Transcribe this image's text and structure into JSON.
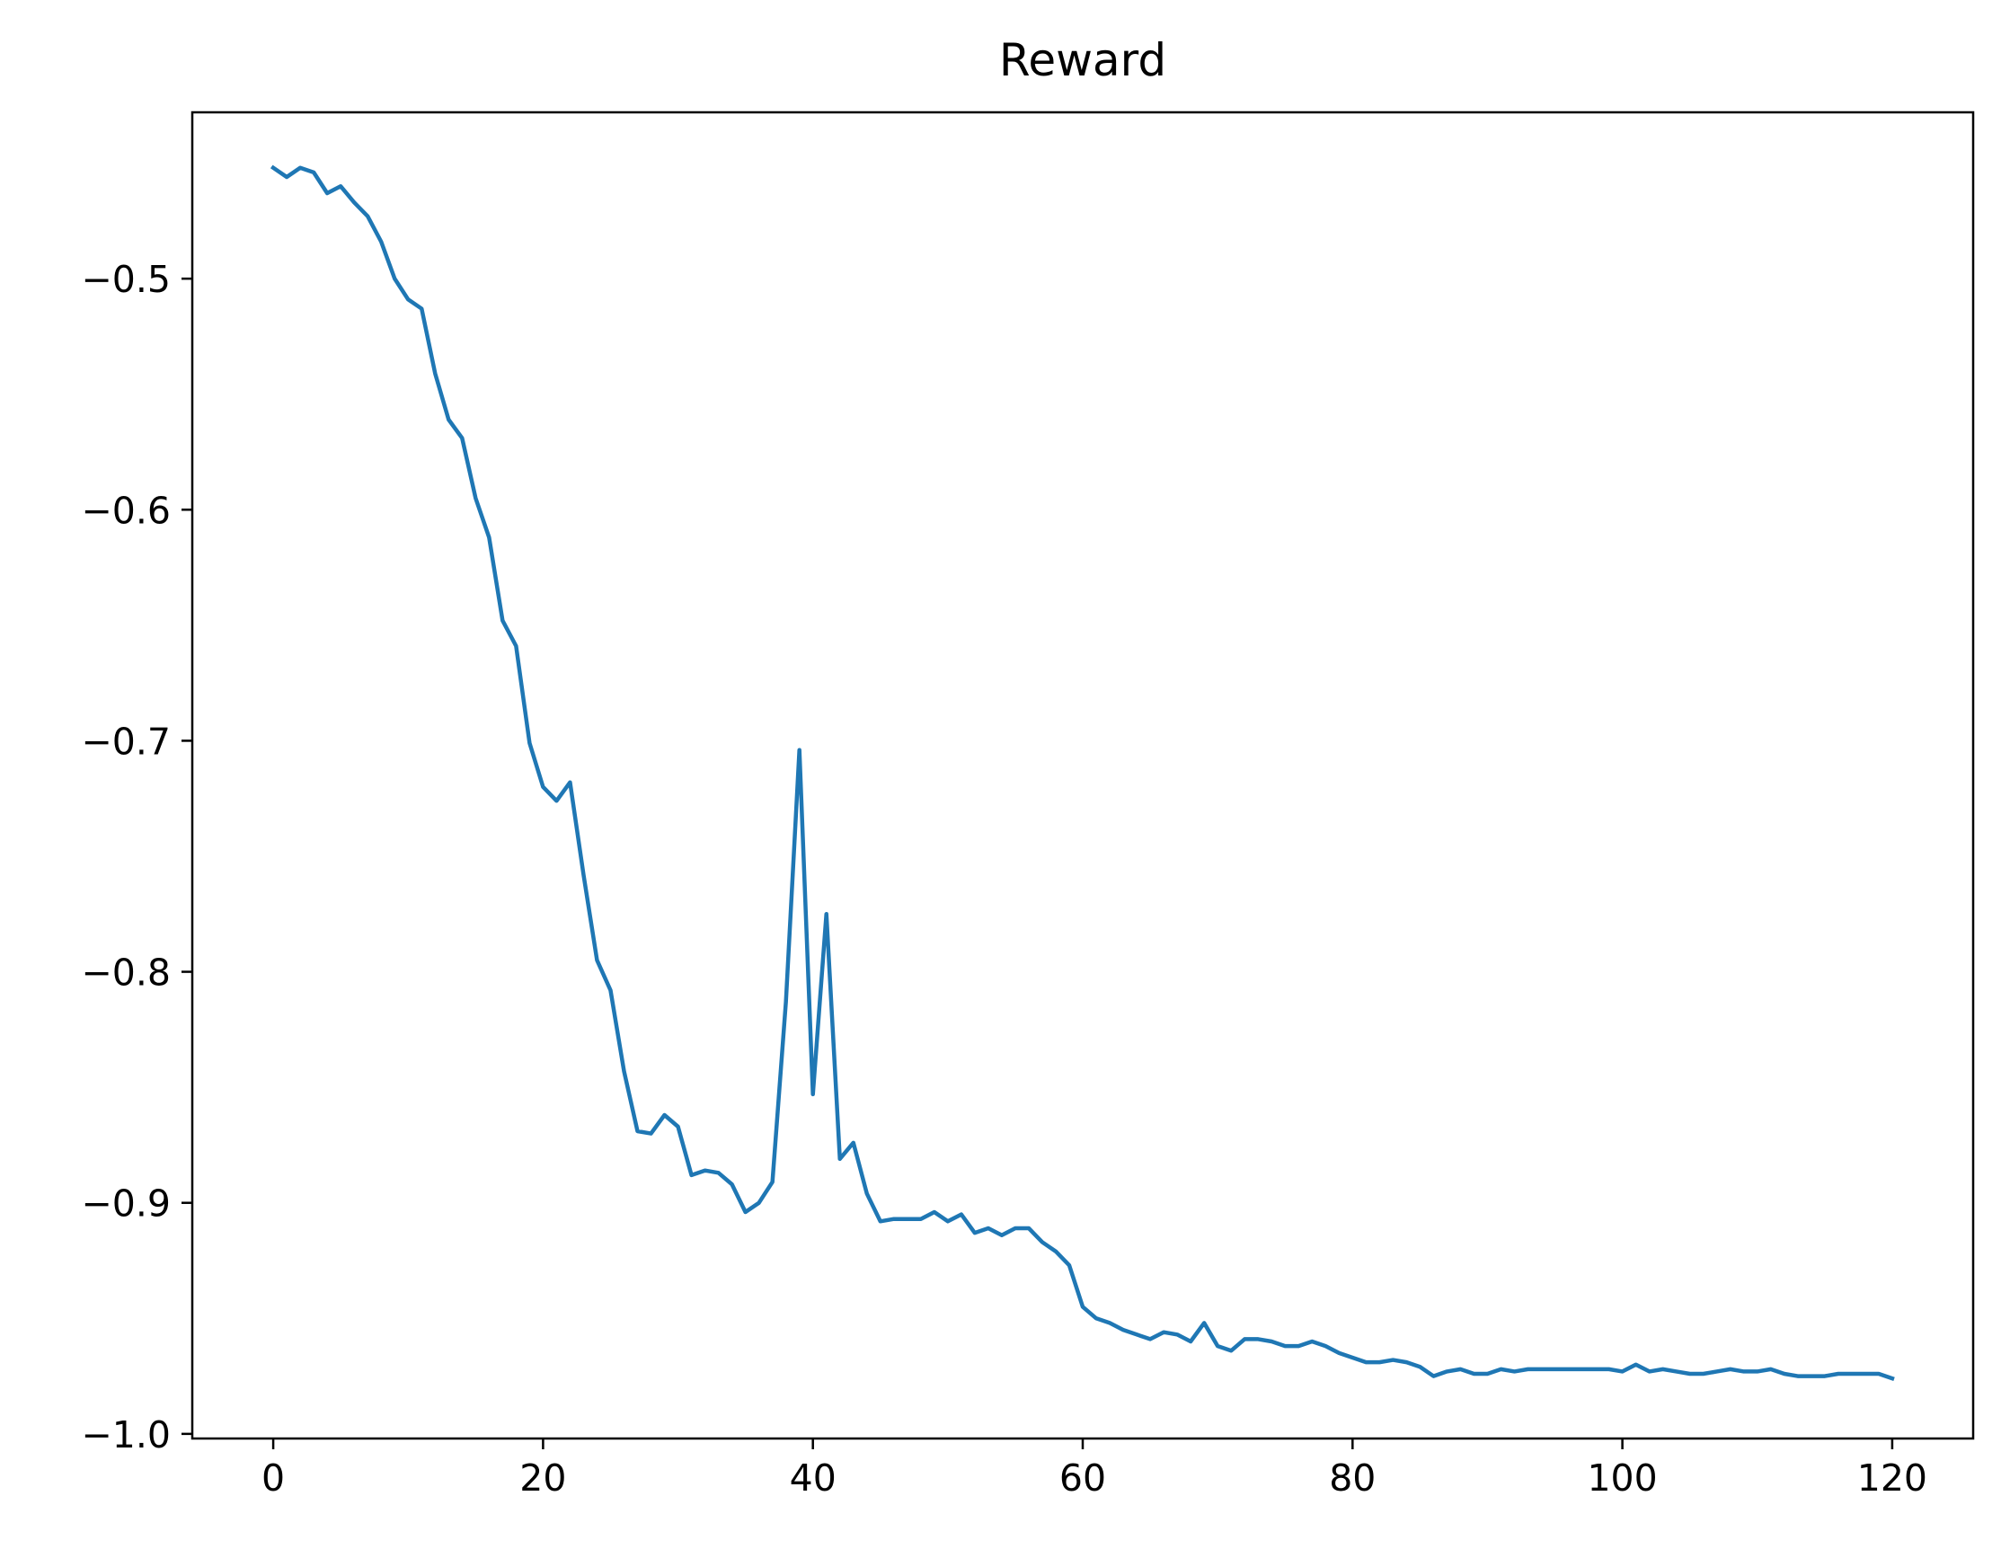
{
  "chart_data": {
    "type": "line",
    "title": "Reward",
    "xlabel": "",
    "ylabel": "",
    "xlim": [
      -6,
      126
    ],
    "ylim": [
      -1.002,
      -0.428
    ],
    "x_ticks": [
      0,
      20,
      40,
      60,
      80,
      100,
      120
    ],
    "x_tick_labels": [
      "0",
      "20",
      "40",
      "60",
      "80",
      "100",
      "120"
    ],
    "y_ticks": [
      -1.0,
      -0.9,
      -0.8,
      -0.7,
      -0.6,
      -0.5
    ],
    "y_tick_labels": [
      "−1.0",
      "−0.9",
      "−0.8",
      "−0.7",
      "−0.6",
      "−0.5"
    ],
    "grid": false,
    "series": [
      {
        "color": "#1f77b4",
        "x": [
          0,
          1,
          2,
          3,
          4,
          5,
          6,
          7,
          8,
          9,
          10,
          11,
          12,
          13,
          14,
          15,
          16,
          17,
          18,
          19,
          20,
          21,
          22,
          23,
          24,
          25,
          26,
          27,
          28,
          29,
          30,
          31,
          32,
          33,
          34,
          35,
          36,
          37,
          38,
          39,
          40,
          41,
          42,
          43,
          44,
          45,
          46,
          47,
          48,
          49,
          50,
          51,
          52,
          53,
          54,
          55,
          56,
          57,
          58,
          59,
          60,
          61,
          62,
          63,
          64,
          65,
          66,
          67,
          68,
          69,
          70,
          71,
          72,
          73,
          74,
          75,
          76,
          77,
          78,
          79,
          80,
          81,
          82,
          83,
          84,
          85,
          86,
          87,
          88,
          89,
          90,
          91,
          92,
          93,
          94,
          95,
          96,
          97,
          98,
          99,
          100,
          101,
          102,
          103,
          104,
          105,
          106,
          107,
          108,
          109,
          110,
          111,
          112,
          113,
          114,
          115,
          116,
          117,
          118,
          119,
          120
        ],
        "y": [
          -0.452,
          -0.456,
          -0.452,
          -0.454,
          -0.463,
          -0.46,
          -0.467,
          -0.473,
          -0.484,
          -0.5,
          -0.509,
          -0.513,
          -0.541,
          -0.561,
          -0.569,
          -0.595,
          -0.612,
          -0.648,
          -0.659,
          -0.701,
          -0.72,
          -0.726,
          -0.718,
          -0.758,
          -0.795,
          -0.808,
          -0.843,
          -0.869,
          -0.87,
          -0.862,
          -0.867,
          -0.888,
          -0.886,
          -0.887,
          -0.892,
          -0.904,
          -0.9,
          -0.891,
          -0.813,
          -0.704,
          -0.853,
          -0.775,
          -0.881,
          -0.874,
          -0.896,
          -0.908,
          -0.907,
          -0.907,
          -0.907,
          -0.904,
          -0.908,
          -0.905,
          -0.913,
          -0.911,
          -0.914,
          -0.911,
          -0.911,
          -0.917,
          -0.921,
          -0.927,
          -0.945,
          -0.95,
          -0.952,
          -0.955,
          -0.957,
          -0.959,
          -0.956,
          -0.957,
          -0.96,
          -0.952,
          -0.962,
          -0.964,
          -0.959,
          -0.959,
          -0.96,
          -0.962,
          -0.962,
          -0.96,
          -0.962,
          -0.965,
          -0.967,
          -0.969,
          -0.969,
          -0.968,
          -0.969,
          -0.971,
          -0.975,
          -0.973,
          -0.972,
          -0.974,
          -0.974,
          -0.972,
          -0.973,
          -0.972,
          -0.972,
          -0.972,
          -0.972,
          -0.972,
          -0.972,
          -0.972,
          -0.973,
          -0.97,
          -0.973,
          -0.972,
          -0.973,
          -0.974,
          -0.974,
          -0.973,
          -0.972,
          -0.973,
          -0.973,
          -0.972,
          -0.974,
          -0.975,
          -0.975,
          -0.975,
          -0.974,
          -0.974,
          -0.974,
          -0.974,
          -0.976
        ]
      }
    ]
  }
}
